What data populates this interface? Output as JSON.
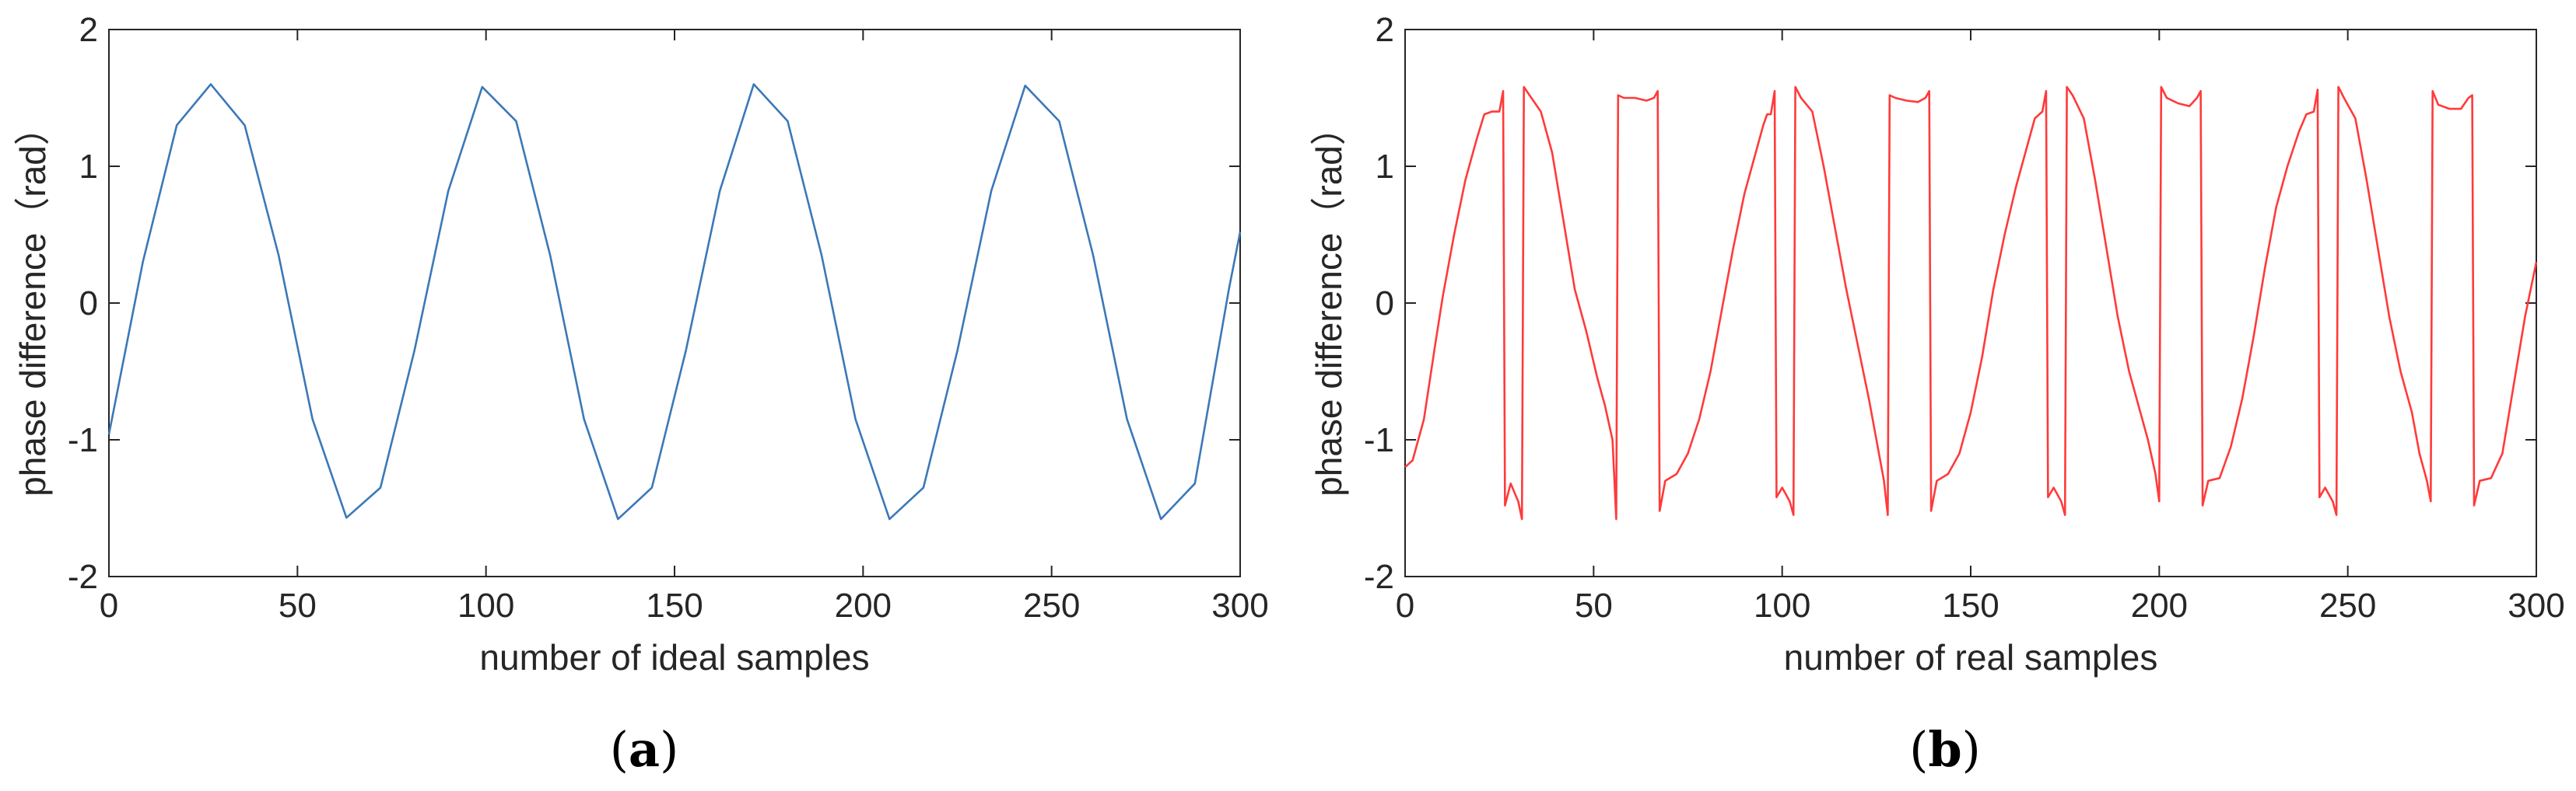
{
  "chart_data": [
    {
      "type": "line",
      "panel_label": "a",
      "xlabel": "number of ideal samples",
      "ylabel": "phase difference（rad）",
      "xlim": [
        0,
        300
      ],
      "ylim": [
        -2,
        2
      ],
      "xticks": [
        0,
        50,
        100,
        150,
        200,
        250,
        300
      ],
      "yticks": [
        -2,
        -1,
        0,
        1,
        2
      ],
      "grid": false,
      "legend": "none",
      "series": [
        {
          "color": "#3b78b8",
          "x": [
            0,
            9,
            18,
            27,
            36,
            45,
            54,
            63,
            72,
            81,
            90,
            99,
            108,
            117,
            126,
            135,
            144,
            153,
            162,
            171,
            180,
            189,
            198,
            207,
            216,
            225,
            234,
            243,
            252,
            261,
            270,
            279,
            288,
            297,
            300
          ],
          "y": [
            -0.96,
            0.3,
            1.3,
            1.6,
            1.3,
            0.35,
            -0.85,
            -1.57,
            -1.35,
            -0.35,
            0.82,
            1.58,
            1.33,
            0.35,
            -0.85,
            -1.58,
            -1.35,
            -0.35,
            0.82,
            1.6,
            1.33,
            0.35,
            -0.85,
            -1.58,
            -1.35,
            -0.35,
            0.82,
            1.59,
            1.33,
            0.35,
            -0.85,
            -1.58,
            -1.32,
            0.1,
            0.52
          ]
        }
      ]
    },
    {
      "type": "line",
      "panel_label": "b",
      "xlabel": "number of real samples",
      "ylabel": "phase difference（rad）",
      "xlim": [
        0,
        300
      ],
      "ylim": [
        -2,
        2
      ],
      "xticks": [
        0,
        50,
        100,
        150,
        200,
        250,
        300
      ],
      "yticks": [
        -2,
        -1,
        0,
        1,
        2
      ],
      "grid": false,
      "legend": "none",
      "series": [
        {
          "color": "#ff3a3a",
          "x": [
            0,
            2,
            5,
            8,
            10,
            13,
            16,
            19,
            21,
            23,
            25,
            26,
            26.5,
            28,
            30,
            31,
            31.5,
            33,
            36,
            39,
            42,
            45,
            48,
            51,
            53,
            55,
            56,
            56.5,
            58,
            61,
            64,
            66,
            67,
            67.5,
            69,
            72,
            75,
            78,
            81,
            84,
            87,
            90,
            93,
            95,
            96,
            97,
            98,
            98.5,
            100,
            102,
            103,
            103.5,
            105,
            108,
            111,
            114,
            117,
            120,
            123,
            125,
            127,
            128,
            128.5,
            130,
            133,
            136,
            138,
            139,
            139.5,
            141,
            144,
            147,
            150,
            153,
            156,
            159,
            162,
            165,
            167,
            169,
            170,
            170.5,
            172,
            174,
            175,
            175.5,
            177,
            180,
            183,
            186,
            189,
            192,
            195,
            197,
            199,
            200,
            200.5,
            202,
            205,
            208,
            210,
            211,
            211.5,
            213,
            216,
            219,
            222,
            225,
            228,
            231,
            234,
            237,
            239,
            241,
            242,
            242.5,
            244,
            246,
            247,
            247.5,
            249,
            252,
            255,
            258,
            261,
            264,
            267,
            269,
            271,
            272,
            272.5,
            274,
            277,
            280,
            282,
            283,
            283.5,
            285,
            288,
            291,
            294,
            297,
            300
          ],
          "y": [
            -1.2,
            -1.15,
            -0.85,
            -0.3,
            0.05,
            0.5,
            0.9,
            1.2,
            1.38,
            1.4,
            1.4,
            1.55,
            -1.48,
            -1.32,
            -1.45,
            -1.58,
            1.58,
            1.52,
            1.4,
            1.1,
            0.6,
            0.1,
            -0.2,
            -0.55,
            -0.75,
            -1.0,
            -1.58,
            1.52,
            1.5,
            1.5,
            1.48,
            1.5,
            1.55,
            -1.52,
            -1.3,
            -1.25,
            -1.1,
            -0.85,
            -0.5,
            -0.05,
            0.4,
            0.8,
            1.1,
            1.3,
            1.38,
            1.38,
            1.55,
            -1.42,
            -1.35,
            -1.45,
            -1.55,
            1.58,
            1.5,
            1.4,
            1.0,
            0.55,
            0.1,
            -0.3,
            -0.7,
            -1.0,
            -1.3,
            -1.55,
            1.52,
            1.5,
            1.48,
            1.47,
            1.5,
            1.55,
            -1.52,
            -1.3,
            -1.25,
            -1.1,
            -0.8,
            -0.4,
            0.1,
            0.5,
            0.85,
            1.15,
            1.35,
            1.4,
            1.55,
            -1.42,
            -1.35,
            -1.45,
            -1.55,
            1.58,
            1.52,
            1.35,
            0.9,
            0.4,
            -0.1,
            -0.5,
            -0.8,
            -1.0,
            -1.25,
            -1.45,
            1.58,
            1.5,
            1.46,
            1.44,
            1.5,
            1.55,
            -1.48,
            -1.3,
            -1.28,
            -1.05,
            -0.7,
            -0.25,
            0.25,
            0.7,
            1.0,
            1.25,
            1.38,
            1.4,
            1.56,
            -1.42,
            -1.35,
            -1.45,
            -1.55,
            1.58,
            1.5,
            1.35,
            0.9,
            0.4,
            -0.1,
            -0.5,
            -0.8,
            -1.1,
            -1.3,
            -1.45,
            1.55,
            1.45,
            1.42,
            1.42,
            1.5,
            1.52,
            -1.48,
            -1.3,
            -1.28,
            -1.1,
            -0.6,
            -0.1,
            0.3
          ]
        }
      ]
    }
  ]
}
